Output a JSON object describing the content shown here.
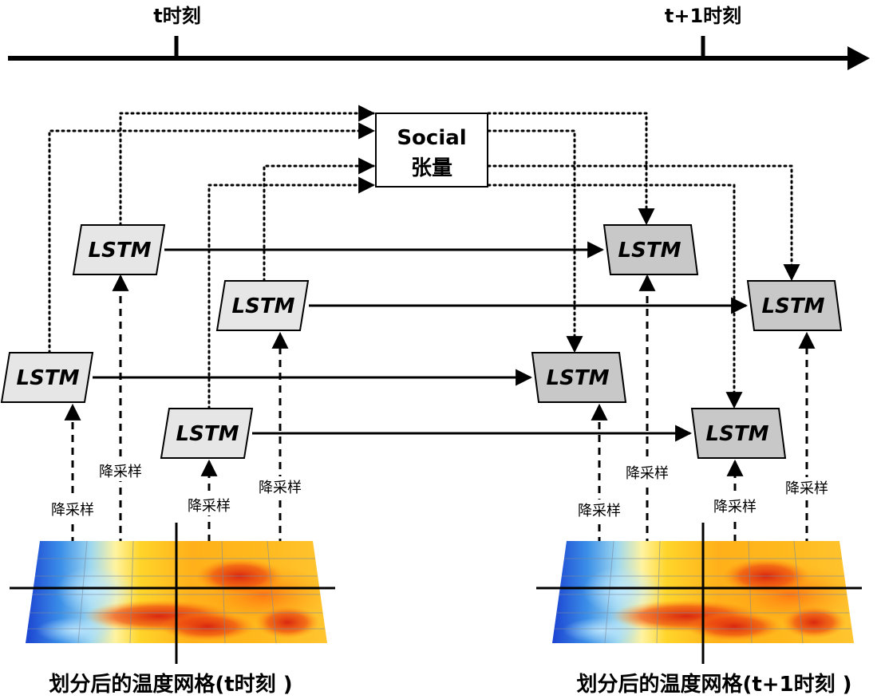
{
  "timeline": {
    "label_t": "t时刻",
    "label_t1": "t+1时刻"
  },
  "social": {
    "line1": "Social",
    "line2": "张量"
  },
  "lstm_label": "LSTM",
  "downsample_label": "降采样",
  "captions": {
    "left": "划分后的温度网格(t时刻 )",
    "right": "划分后的温度网格(t+1时刻 )"
  },
  "colors": {
    "lstm_t_fill": "#e6e6e6",
    "lstm_t1_fill": "#c8c8c8"
  }
}
